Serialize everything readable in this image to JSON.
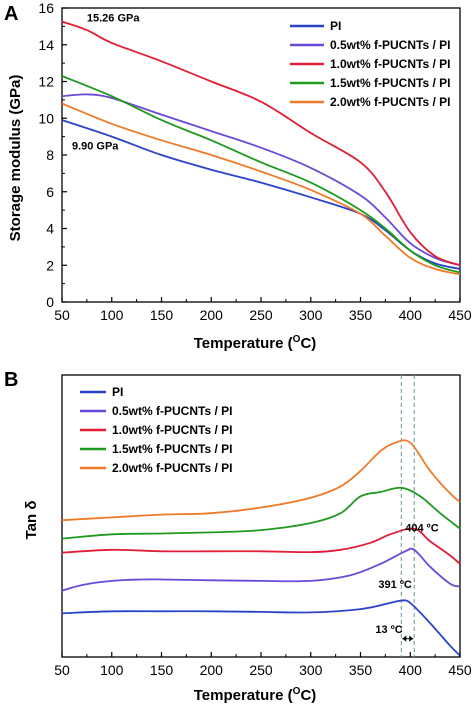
{
  "colors": {
    "PI": "#2a44c8",
    "PUC05": "#6a4ad6",
    "PUC10": "#e01e34",
    "PUC15": "#1e9a1e",
    "PUC20": "#f07a2a",
    "guide": "#6f8f9a"
  },
  "chart_data": [
    {
      "panel": "A",
      "type": "line",
      "xlabel_text": "Temperature (",
      "xlabel_sup": "O",
      "xlabel_end": "C)",
      "ylabel": "Storage modulus (GPa)",
      "xlim": [
        50,
        450
      ],
      "ylim": [
        0,
        16
      ],
      "xticks": [
        "50",
        "100",
        "150",
        "200",
        "250",
        "300",
        "350",
        "400",
        "450"
      ],
      "yticks": [
        "0",
        "2",
        "4",
        "6",
        "8",
        "10",
        "12",
        "14",
        "16"
      ],
      "legend_position": "top-right",
      "annotations": [
        {
          "text": "15.26 GPa",
          "x": 75,
          "y": 15.26
        },
        {
          "text": "9.90 GPa",
          "x": 60,
          "y": 8.3
        }
      ],
      "series": [
        {
          "name": "PI",
          "color_key": "PI",
          "x": [
            50,
            100,
            150,
            200,
            250,
            300,
            350,
            375,
            400,
            425,
            450
          ],
          "y": [
            9.9,
            9.0,
            8.0,
            7.2,
            6.5,
            5.7,
            4.8,
            3.9,
            2.8,
            2.1,
            1.8
          ]
        },
        {
          "name": "0.5wt% f-PUCNTs / PI",
          "color_key": "PUC05",
          "x": [
            50,
            75,
            100,
            150,
            200,
            250,
            300,
            350,
            375,
            400,
            425,
            450
          ],
          "y": [
            11.2,
            11.3,
            11.1,
            10.2,
            9.3,
            8.4,
            7.3,
            5.8,
            4.6,
            3.2,
            2.4,
            2.0
          ]
        },
        {
          "name": "1.0wt% f-PUCNTs / PI",
          "color_key": "PUC10",
          "x": [
            50,
            75,
            100,
            150,
            200,
            250,
            300,
            350,
            375,
            400,
            425,
            450
          ],
          "y": [
            15.26,
            14.8,
            14.1,
            13.1,
            12.0,
            10.9,
            9.2,
            7.6,
            6.0,
            3.8,
            2.5,
            2.0
          ]
        },
        {
          "name": "1.5wt% f-PUCNTs / PI",
          "color_key": "PUC15",
          "x": [
            50,
            100,
            150,
            200,
            250,
            300,
            350,
            375,
            400,
            425,
            450
          ],
          "y": [
            12.3,
            11.2,
            9.9,
            8.8,
            7.6,
            6.5,
            5.0,
            4.0,
            2.8,
            2.0,
            1.6
          ]
        },
        {
          "name": "2.0wt% f-PUCNTs / PI",
          "color_key": "PUC20",
          "x": [
            50,
            100,
            150,
            200,
            250,
            300,
            350,
            375,
            400,
            425,
            450
          ],
          "y": [
            10.8,
            9.7,
            8.8,
            8.0,
            7.1,
            6.1,
            4.8,
            3.6,
            2.4,
            1.8,
            1.5
          ]
        }
      ]
    },
    {
      "panel": "B",
      "type": "line",
      "xlabel_text": "Temperature (",
      "xlabel_sup": "O",
      "xlabel_end": "C)",
      "ylabel": "Tan δ",
      "xlim": [
        50,
        450
      ],
      "ylim": [
        0,
        10
      ],
      "xticks": [
        "50",
        "100",
        "150",
        "200",
        "250",
        "300",
        "350",
        "400",
        "450"
      ],
      "legend_position": "top-left",
      "annotations": [
        {
          "text": "404 ºC",
          "x": 395,
          "y": 4.45
        },
        {
          "text": "391 ºC",
          "x": 368,
          "y": 2.45
        },
        {
          "text": "13 ºC",
          "x": 365,
          "y": 0.85
        }
      ],
      "guides_x": [
        391,
        404
      ],
      "series": [
        {
          "name": "PI",
          "color_key": "PI",
          "x": [
            50,
            100,
            150,
            200,
            250,
            300,
            350,
            380,
            391,
            400,
            420,
            440,
            450
          ],
          "y": [
            1.55,
            1.62,
            1.62,
            1.62,
            1.6,
            1.58,
            1.7,
            1.92,
            2.0,
            1.92,
            1.2,
            0.4,
            0.05
          ]
        },
        {
          "name": "0.5wt% f-PUCNTs / PI",
          "color_key": "PUC05",
          "x": [
            50,
            70,
            100,
            130,
            150,
            200,
            250,
            300,
            340,
            370,
            395,
            404,
            420,
            440,
            450
          ],
          "y": [
            2.35,
            2.55,
            2.7,
            2.75,
            2.75,
            2.72,
            2.7,
            2.7,
            2.9,
            3.3,
            3.75,
            3.8,
            3.2,
            2.6,
            2.5
          ]
        },
        {
          "name": "1.0wt% f-PUCNTs / PI",
          "color_key": "PUC10",
          "x": [
            50,
            100,
            150,
            200,
            250,
            300,
            330,
            360,
            380,
            404,
            420,
            440,
            450
          ],
          "y": [
            3.7,
            3.8,
            3.75,
            3.75,
            3.75,
            3.72,
            3.8,
            4.05,
            4.35,
            4.55,
            4.1,
            3.6,
            3.3
          ]
        },
        {
          "name": "1.5wt% f-PUCNTs / PI",
          "color_key": "PUC15",
          "x": [
            50,
            100,
            150,
            200,
            250,
            300,
            330,
            350,
            370,
            391,
            410,
            430,
            450
          ],
          "y": [
            4.2,
            4.35,
            4.38,
            4.42,
            4.5,
            4.75,
            5.1,
            5.7,
            5.85,
            6.0,
            5.7,
            5.1,
            4.55
          ]
        },
        {
          "name": "2.0wt% f-PUCNTs / PI",
          "color_key": "PUC20",
          "x": [
            50,
            100,
            150,
            200,
            250,
            300,
            330,
            350,
            370,
            385,
            400,
            420,
            440,
            450
          ],
          "y": [
            4.85,
            4.95,
            5.05,
            5.1,
            5.3,
            5.65,
            6.05,
            6.6,
            7.3,
            7.6,
            7.6,
            6.6,
            5.8,
            5.5
          ]
        }
      ]
    }
  ]
}
